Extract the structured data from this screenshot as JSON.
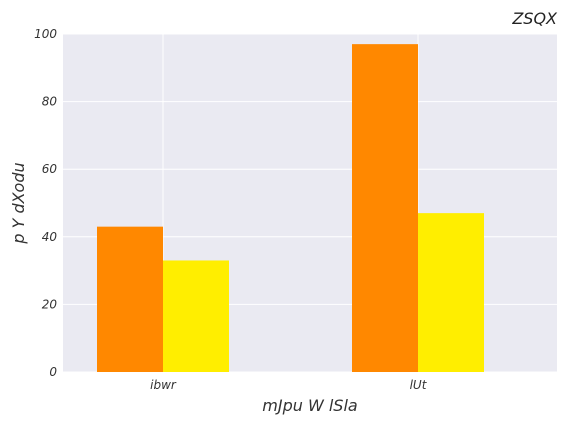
{
  "chart_data": {
    "type": "bar",
    "title": "ZSQX",
    "xlabel": "mJpu W lSla",
    "ylabel": "p Y dXodu",
    "categories": [
      "ibwr",
      "lUt"
    ],
    "series": [
      {
        "values": [
          43,
          97
        ],
        "color": "#ff8800"
      },
      {
        "values": [
          33,
          47
        ],
        "color": "#ffee00"
      }
    ],
    "ylim": [
      0,
      100
    ],
    "yticks": [
      0,
      20,
      40,
      60,
      80,
      100
    ],
    "grid": true,
    "background": "#eaeaf2",
    "gridColor": "#ffffff"
  }
}
